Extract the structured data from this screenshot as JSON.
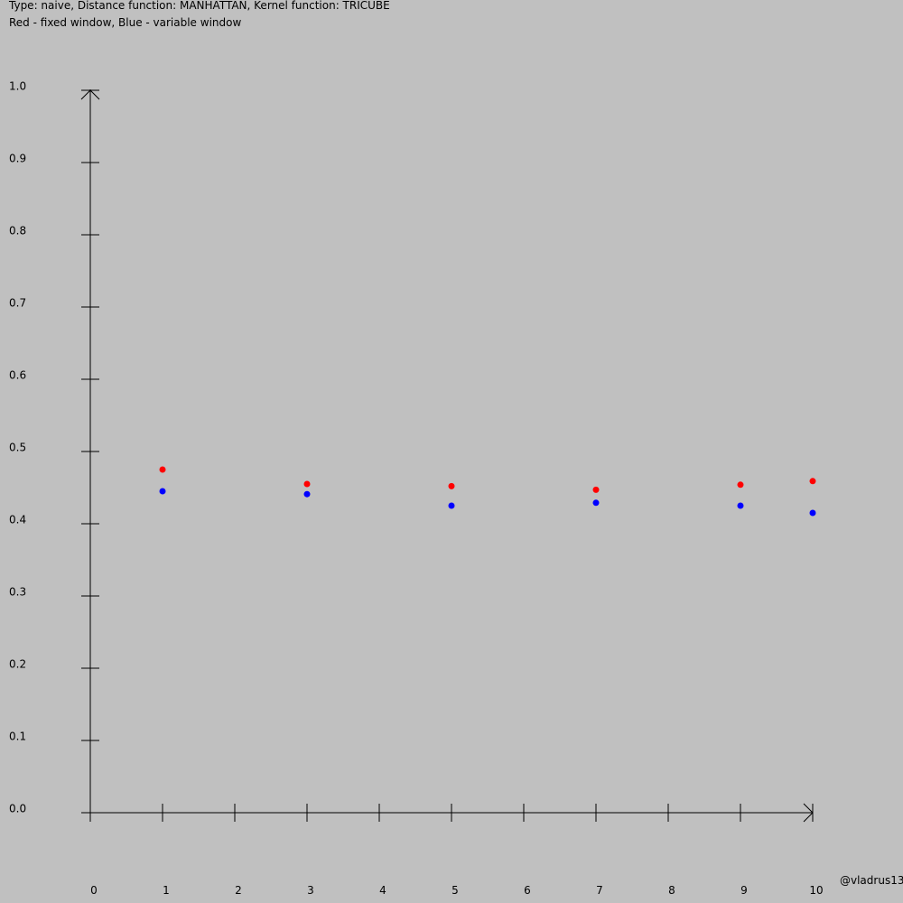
{
  "header": {
    "line1": "Type: naive, Distance function: MANHATTAN, Kernel function: TRICUBE",
    "line2": "Red - fixed window, Blue - variable window"
  },
  "watermark": "@vladrus13",
  "colors": {
    "background": "#c0c0c0",
    "axis": "#000000",
    "fixed_window": "#ff0000",
    "variable_window": "#0000ff"
  },
  "chart_data": {
    "type": "scatter",
    "title": "",
    "xlabel": "",
    "ylabel": "",
    "xlim": [
      0,
      10
    ],
    "ylim": [
      0,
      1.0
    ],
    "grid": false,
    "x_ticks": [
      0,
      1,
      2,
      3,
      4,
      5,
      6,
      7,
      8,
      9,
      10
    ],
    "x_tick_labels": [
      "0",
      "1",
      "2",
      "3",
      "4",
      "5",
      "6",
      "7",
      "8",
      "9",
      "10"
    ],
    "y_ticks": [
      0,
      0.1,
      0.2,
      0.3,
      0.4,
      0.5,
      0.6,
      0.7,
      0.8,
      0.9,
      1.0
    ],
    "y_tick_labels": [
      "0.0",
      "0.1",
      "0.2",
      "0.3",
      "0.4",
      "0.5",
      "0.6",
      "0.7",
      "0.8",
      "0.9",
      "1.0"
    ],
    "series": [
      {
        "color": "#ff0000",
        "points": [
          {
            "x": 1,
            "y": 0.47
          },
          {
            "x": 3,
            "y": 0.45
          },
          {
            "x": 5,
            "y": 0.447
          },
          {
            "x": 7,
            "y": 0.442
          },
          {
            "x": 9,
            "y": 0.449
          },
          {
            "x": 10,
            "y": 0.454
          }
        ]
      },
      {
        "color": "#0000ff",
        "points": [
          {
            "x": 1,
            "y": 0.44
          },
          {
            "x": 3,
            "y": 0.436
          },
          {
            "x": 5,
            "y": 0.42
          },
          {
            "x": 7,
            "y": 0.424
          },
          {
            "x": 9,
            "y": 0.42
          },
          {
            "x": 10,
            "y": 0.41
          }
        ]
      }
    ]
  }
}
